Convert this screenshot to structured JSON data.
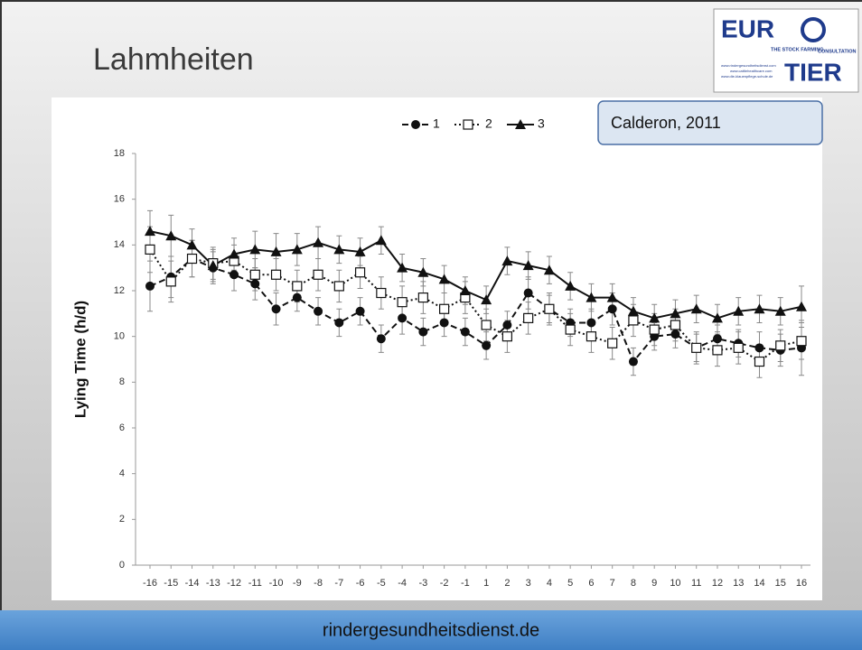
{
  "slide_title": "Lahmheiten",
  "footer": "rindergesundheitsdienst.de",
  "logo": {
    "top": "EUR",
    "bottom": "TIER",
    "tagline_left": "THE STOCK FARMING",
    "tagline_right": "CONSULTATION",
    "urls": [
      "www.rindergesundheitsdienst.com",
      "www.cattlehealthcare.com",
      "www.die-klauenpflege-schule.de"
    ]
  },
  "chart_data": {
    "type": "line",
    "annotation": "Calderon, 2011",
    "y_label": "Lying Time (h/d)",
    "categories": [
      "-16",
      "-15",
      "-14",
      "-13",
      "-12",
      "-11",
      "-10",
      "-9",
      "-8",
      "-7",
      "-6",
      "-5",
      "-4",
      "-3",
      "-2",
      "-1",
      "1",
      "2",
      "3",
      "4",
      "5",
      "6",
      "7",
      "8",
      "9",
      "10",
      "11",
      "12",
      "13",
      "14",
      "15",
      "16"
    ],
    "ylim": [
      0,
      18
    ],
    "yticks": [
      0,
      2,
      4,
      6,
      8,
      10,
      12,
      14,
      16,
      18
    ],
    "series": [
      {
        "name": "1",
        "color": "#111111",
        "marker": "circle",
        "dash": "dashed",
        "values": [
          12.2,
          12.6,
          13.4,
          13.0,
          12.7,
          12.3,
          11.2,
          11.7,
          11.1,
          10.6,
          11.1,
          9.9,
          10.8,
          10.2,
          10.6,
          10.2,
          9.6,
          10.5,
          11.9,
          11.2,
          10.6,
          10.6,
          11.2,
          8.9,
          10.0,
          10.1,
          9.5,
          9.9,
          9.7,
          9.5,
          9.4,
          9.5
        ],
        "errors": [
          1.1,
          0.9,
          0.8,
          0.7,
          0.7,
          0.7,
          0.7,
          0.6,
          0.6,
          0.6,
          0.6,
          0.6,
          0.7,
          0.6,
          0.6,
          0.6,
          0.6,
          0.6,
          0.7,
          0.6,
          0.6,
          0.6,
          0.7,
          0.6,
          0.6,
          0.6,
          0.6,
          0.6,
          0.6,
          0.7,
          0.7,
          1.2
        ]
      },
      {
        "name": "2",
        "color": "#111111",
        "marker": "square",
        "dash": "dotted",
        "values": [
          13.8,
          12.4,
          13.4,
          13.2,
          13.3,
          12.7,
          12.7,
          12.2,
          12.7,
          12.2,
          12.8,
          11.9,
          11.5,
          11.7,
          11.2,
          11.7,
          10.5,
          10.0,
          10.8,
          11.2,
          10.3,
          10.0,
          9.7,
          10.7,
          10.3,
          10.5,
          9.5,
          9.4,
          9.5,
          8.9,
          9.6,
          9.8
        ],
        "errors": [
          1.0,
          0.9,
          0.8,
          0.7,
          0.7,
          0.7,
          0.7,
          0.7,
          0.7,
          0.7,
          0.7,
          0.7,
          0.7,
          0.7,
          0.7,
          0.7,
          0.7,
          0.7,
          0.7,
          0.7,
          0.7,
          0.7,
          0.7,
          0.7,
          0.7,
          0.7,
          0.7,
          0.7,
          0.7,
          0.7,
          0.7,
          0.8
        ]
      },
      {
        "name": "3",
        "color": "#111111",
        "marker": "triangle",
        "dash": "solid",
        "values": [
          14.6,
          14.4,
          14.0,
          13.1,
          13.6,
          13.8,
          13.7,
          13.8,
          14.1,
          13.8,
          13.7,
          14.2,
          13.0,
          12.8,
          12.5,
          12.0,
          11.6,
          13.3,
          13.1,
          12.9,
          12.2,
          11.7,
          11.7,
          11.1,
          10.8,
          11.0,
          11.2,
          10.8,
          11.1,
          11.2,
          11.1,
          11.3
        ],
        "errors": [
          0.9,
          0.9,
          0.7,
          0.7,
          0.7,
          0.8,
          0.8,
          0.7,
          0.7,
          0.6,
          0.6,
          0.6,
          0.6,
          0.6,
          0.6,
          0.6,
          0.6,
          0.6,
          0.6,
          0.6,
          0.6,
          0.6,
          0.6,
          0.6,
          0.6,
          0.6,
          0.6,
          0.6,
          0.6,
          0.6,
          0.6,
          0.9
        ]
      }
    ]
  }
}
